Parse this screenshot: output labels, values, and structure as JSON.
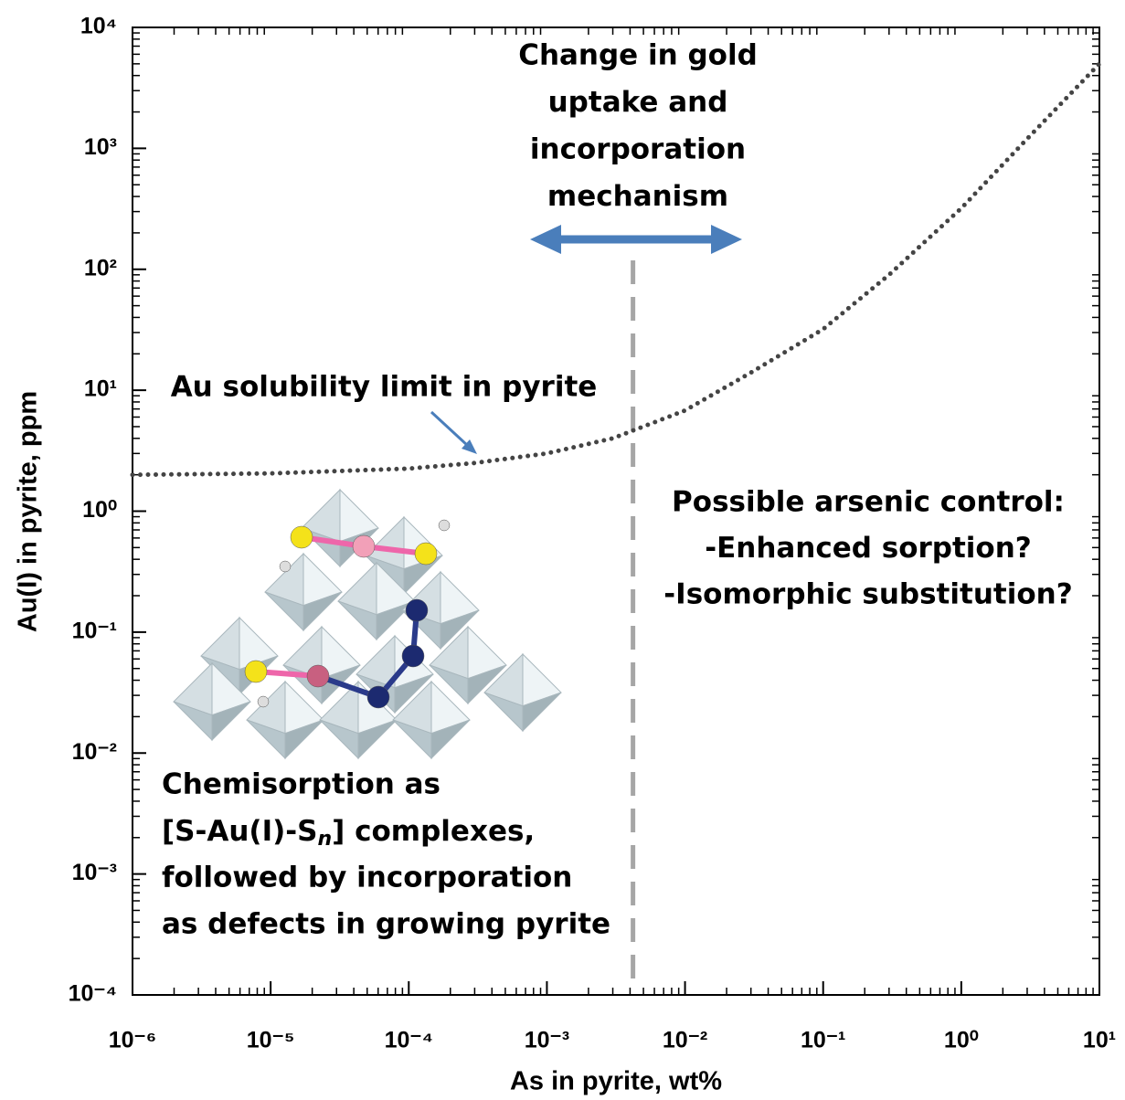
{
  "chart_data": {
    "type": "line",
    "x_label": "As in pyrite, wt%",
    "y_label": "Au(I) in pyrite, ppm",
    "x_scale": "log",
    "y_scale": "log",
    "xlim": [
      1e-06,
      10
    ],
    "ylim": [
      0.0001,
      10000
    ],
    "xticks": [
      {
        "value": 1e-06,
        "label": "10⁻⁶"
      },
      {
        "value": 1e-05,
        "label": "10⁻⁵"
      },
      {
        "value": 0.0001,
        "label": "10⁻⁴"
      },
      {
        "value": 0.001,
        "label": "10⁻³"
      },
      {
        "value": 0.01,
        "label": "10⁻²"
      },
      {
        "value": 0.1,
        "label": "10⁻¹"
      },
      {
        "value": 1,
        "label": "10⁰"
      },
      {
        "value": 10,
        "label": "10¹"
      }
    ],
    "yticks": [
      {
        "value": 0.0001,
        "label": "10⁻⁴"
      },
      {
        "value": 0.001,
        "label": "10⁻³"
      },
      {
        "value": 0.01,
        "label": "10⁻²"
      },
      {
        "value": 0.1,
        "label": "10⁻¹"
      },
      {
        "value": 1,
        "label": "10⁰"
      },
      {
        "value": 10,
        "label": "10¹"
      },
      {
        "value": 100,
        "label": "10²"
      },
      {
        "value": 1000,
        "label": "10³"
      },
      {
        "value": 10000,
        "label": "10⁴"
      }
    ],
    "x": [
      1e-06,
      1e-05,
      0.0001,
      0.0003,
      0.001,
      0.003,
      0.01,
      0.03,
      0.1,
      0.3,
      1,
      3,
      10
    ],
    "series": [
      {
        "name": "Au solubility limit in pyrite",
        "color": "#444444",
        "values": [
          2.0,
          2.05,
          2.25,
          2.5,
          3.0,
          4.0,
          6.8,
          14,
          32,
          90,
          320,
          1200,
          5000
        ]
      }
    ],
    "vline": 0.0042,
    "annotations": {
      "mechanism": [
        "Change in gold",
        "uptake and",
        "incorporation",
        "mechanism"
      ],
      "arsenic": [
        "Possible arsenic control:",
        "-Enhanced sorption?",
        "-Isomorphic substitution?"
      ],
      "chemisorption": [
        "Chemisorption as",
        [
          "[S-Au(I)-S",
          "n",
          "] complexes,"
        ],
        "followed by incorporation",
        "as defects in growing pyrite"
      ]
    }
  }
}
